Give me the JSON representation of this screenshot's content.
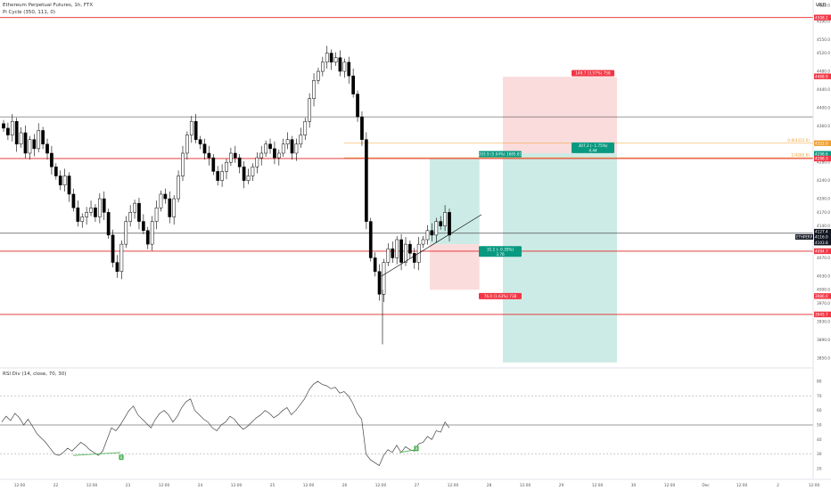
{
  "header": {
    "symbol_line": "Ethereum Perpetual Futures, 1h, FTX",
    "indicator_line": "Pi Cycle (350, 111, 0)",
    "rsi_label": "RSI Div (14, close, 70, 30)",
    "currency": "USD"
  },
  "colors": {
    "up": "#ffffff",
    "down": "#000000",
    "hline": "#e02424",
    "gray_line": "#333333",
    "tp_fill": "#cdebe6",
    "sl_fill": "#fbdcdc",
    "green_tag": "#089981",
    "red_tag": "#f23645",
    "fib_line": "#f0a030",
    "div_line": "#4caf50"
  },
  "chart_data": [
    {
      "type": "candlestick",
      "title": "Ethereum Perpetual Futures, 1h, FTX",
      "ylim": [
        3830,
        4625
      ],
      "y_ticks": [
        4625.0,
        4590.0,
        4550.0,
        4520.0,
        4480.0,
        4440.0,
        4400.0,
        4360.0,
        4320.0,
        4280.0,
        4240.0,
        4200.0,
        4170.0,
        4140.0,
        4100.0,
        4070.0,
        4030.0,
        4000.0,
        3970.0,
        3930.0,
        3890.0,
        3850.0
      ],
      "x_ticks": [
        "12:00",
        "22",
        "12:00",
        "23",
        "12:00",
        "24",
        "12:00",
        "25",
        "12:00",
        "26",
        "12:00",
        "27",
        "12:00",
        "28",
        "12:00",
        "29",
        "12:00",
        "30",
        "12:00",
        "Dec",
        "12:00",
        "2",
        "12:00"
      ],
      "red_lines": [
        4598.2,
        4288.3,
        4084.7,
        3945.7
      ],
      "gray_lines": [
        4380,
        4124
      ],
      "candles_close": [
        4355,
        4340,
        4370,
        4320,
        4345,
        4300,
        4330,
        4310,
        4350,
        4320,
        4300,
        4270,
        4250,
        4230,
        4250,
        4210,
        4180,
        4150,
        4160,
        4170,
        4180,
        4160,
        4200,
        4170,
        4120,
        4060,
        4040,
        4100,
        4150,
        4170,
        4190,
        4150,
        4130,
        4100,
        4150,
        4180,
        4210,
        4200,
        4160,
        4200,
        4250,
        4300,
        4340,
        4370,
        4330,
        4320,
        4300,
        4290,
        4260,
        4240,
        4260,
        4280,
        4300,
        4290,
        4270,
        4240,
        4250,
        4270,
        4290,
        4300,
        4320,
        4310,
        4290,
        4300,
        4320,
        4330,
        4300,
        4320,
        4340,
        4370,
        4420,
        4460,
        4480,
        4500,
        4520,
        4500,
        4510,
        4480,
        4500,
        4470,
        4430,
        4380,
        4330,
        4150,
        4070,
        4040,
        3990,
        4060,
        4090,
        4070,
        4110,
        4060,
        4100,
        4080,
        4060,
        4100,
        4110,
        4130,
        4120,
        4150,
        4140,
        4170,
        4120
      ],
      "projection_line": {
        "from": [
          "27 00:00",
          4030
        ],
        "to": [
          "27 14:00",
          4165
        ]
      },
      "price_labels": [
        {
          "value": "4598.2",
          "color": "red"
        },
        {
          "value": "4468.9",
          "color": "red"
        },
        {
          "value": "4322.0",
          "color": "yellow"
        },
        {
          "value": "4298.6",
          "color": "green"
        },
        {
          "value": "4288.3",
          "color": "red"
        },
        {
          "value": "4127.4",
          "color": "black"
        },
        {
          "value": "4116.0",
          "color": "black"
        },
        {
          "value": "4103.8",
          "color": "black"
        },
        {
          "value": "4084.7",
          "color": "red"
        },
        {
          "value": "3986.0",
          "color": "red"
        },
        {
          "value": "3945.7",
          "color": "red"
        }
      ],
      "current_price_tag": "ETHPERP",
      "fib_labels": [
        "0.8(4322.0)",
        "1(4285.6)"
      ],
      "positions": [
        {
          "name": "long",
          "target_label": "203.9 (5.04%) 1685.81",
          "center_label_1": "31.1 (- 0.35%)",
          "center_label_2": "3.76",
          "stop_label": "76.0 (1.63%) 738"
        },
        {
          "name": "short",
          "stop_label": "149.7 (3.57%) 758",
          "center_label_1": "307.2 (- 1.75%)",
          "center_label_2": "4.44"
        }
      ]
    },
    {
      "type": "line",
      "title": "RSI Div (14, close, 70, 30)",
      "ylim": [
        15,
        85
      ],
      "y_ticks": [
        80,
        70,
        60,
        50,
        40,
        30,
        20
      ],
      "levels": [
        70,
        50,
        30
      ],
      "values": [
        52,
        56,
        53,
        58,
        55,
        50,
        54,
        49,
        44,
        41,
        38,
        34,
        30,
        29,
        31,
        34,
        32,
        35,
        38,
        36,
        33,
        31,
        29,
        32,
        40,
        48,
        46,
        50,
        55,
        60,
        63,
        57,
        54,
        51,
        48,
        54,
        58,
        60,
        57,
        52,
        56,
        62,
        66,
        68,
        60,
        57,
        54,
        52,
        48,
        46,
        50,
        52,
        56,
        54,
        50,
        47,
        49,
        52,
        55,
        57,
        60,
        58,
        55,
        57,
        60,
        62,
        57,
        60,
        64,
        68,
        74,
        78,
        80,
        78,
        77,
        75,
        76,
        72,
        73,
        70,
        65,
        58,
        54,
        30,
        26,
        24,
        22,
        29,
        33,
        31,
        36,
        31,
        35,
        33,
        32,
        37,
        38,
        42,
        40,
        46,
        45,
        52,
        48
      ],
      "divergence_tags": [
        "B",
        "B"
      ]
    }
  ]
}
